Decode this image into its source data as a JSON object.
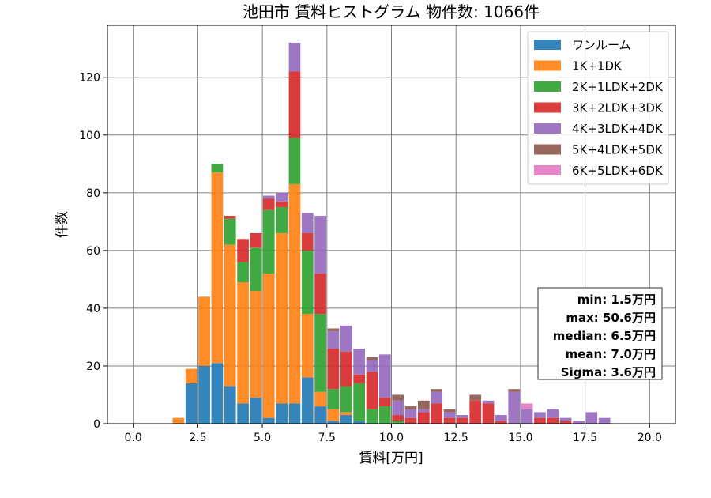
{
  "chart_data": {
    "type": "bar",
    "stacked": true,
    "title": "池田市 賃料ヒストグラム 物件数: 1066件",
    "xlabel": "賃料[万円]",
    "ylabel": "件数",
    "xlim": [
      -1.0,
      21.0
    ],
    "ylim": [
      0,
      138
    ],
    "bin_width": 0.5,
    "xticks": [
      0.0,
      2.5,
      5.0,
      7.5,
      10.0,
      12.5,
      15.0,
      17.5,
      20.0
    ],
    "xtick_labels": [
      "0.0",
      "2.5",
      "5.0",
      "7.5",
      "10.0",
      "12.5",
      "15.0",
      "17.5",
      "20.0"
    ],
    "yticks": [
      0,
      20,
      40,
      60,
      80,
      100,
      120
    ],
    "ytick_labels": [
      "0",
      "20",
      "40",
      "60",
      "80",
      "100",
      "120"
    ],
    "grid": true,
    "legend_position": "top-right",
    "bin_starts": [
      1.5,
      2.0,
      2.5,
      3.0,
      3.5,
      4.0,
      4.5,
      5.0,
      5.5,
      6.0,
      6.5,
      7.0,
      7.5,
      8.0,
      8.5,
      9.0,
      9.5,
      10.0,
      10.5,
      11.0,
      11.5,
      12.0,
      12.5,
      13.0,
      13.5,
      14.0,
      14.5,
      15.0,
      15.5,
      16.0,
      16.5,
      17.0,
      17.5,
      18.0,
      18.5
    ],
    "series": [
      {
        "name": "ワンルーム",
        "color": "#1f77b4",
        "values": [
          0,
          14,
          20,
          21,
          13,
          7,
          9,
          2,
          7,
          7,
          16,
          6,
          1,
          3,
          1,
          0,
          0,
          0,
          0,
          0,
          0,
          0,
          0,
          0,
          0,
          0,
          0,
          0,
          0,
          0,
          0,
          0,
          0,
          0,
          0
        ]
      },
      {
        "name": "1K+1DK",
        "color": "#ff7f0e",
        "values": [
          2,
          5,
          24,
          66,
          49,
          42,
          37,
          50,
          59,
          76,
          22,
          5,
          4,
          1,
          0,
          0,
          0,
          0,
          0,
          0,
          0,
          0,
          0,
          0,
          0,
          0,
          0,
          0,
          0,
          0,
          0,
          0,
          0,
          0,
          0
        ]
      },
      {
        "name": "2K+1LDK+2DK",
        "color": "#2ca02c",
        "values": [
          0,
          0,
          0,
          3,
          9,
          7,
          15,
          22,
          9,
          16,
          22,
          27,
          7,
          9,
          13,
          5,
          6,
          1,
          0,
          0,
          0,
          0,
          0,
          0,
          0,
          0,
          0,
          0,
          0,
          0,
          0,
          0,
          0,
          0,
          0
        ]
      },
      {
        "name": "3K+2LDK+3DK",
        "color": "#d62728",
        "values": [
          0,
          0,
          0,
          0,
          1,
          8,
          5,
          4,
          2,
          23,
          6,
          14,
          14,
          12,
          3,
          13,
          3,
          2,
          2,
          4,
          7,
          2,
          2,
          8,
          7,
          1,
          0,
          0,
          2,
          2,
          1,
          0,
          0,
          0,
          0
        ]
      },
      {
        "name": "4K+3LDK+4DK",
        "color": "#9467bd",
        "values": [
          0,
          0,
          0,
          0,
          0,
          0,
          0,
          1,
          3,
          10,
          7,
          20,
          6,
          9,
          9,
          4,
          15,
          5,
          3,
          1,
          4,
          2,
          1,
          0,
          1,
          2,
          11,
          5,
          2,
          3,
          1,
          1,
          4,
          2,
          0
        ]
      },
      {
        "name": "5K+4LDK+5DK",
        "color": "#8c564b",
        "values": [
          0,
          0,
          0,
          0,
          0,
          0,
          0,
          0,
          0,
          0,
          0,
          0,
          1,
          0,
          0,
          1,
          0,
          2,
          1,
          3,
          1,
          1,
          0,
          2,
          0,
          0,
          1,
          0,
          0,
          0,
          0,
          0,
          0,
          0,
          0
        ]
      },
      {
        "name": "6K+5LDK+6DK",
        "color": "#e377c2",
        "values": [
          0,
          0,
          0,
          0,
          0,
          0,
          0,
          0,
          0,
          0,
          0,
          0,
          0,
          0,
          0,
          0,
          0,
          0,
          0,
          0,
          0,
          0,
          0,
          0,
          0,
          0,
          0,
          2,
          0,
          0,
          0,
          0,
          0,
          0,
          0
        ]
      }
    ],
    "stats_box": {
      "position": "right",
      "lines": [
        "min: 1.5万円",
        "max: 50.6万円",
        "median: 6.5万円",
        "mean: 7.0万円",
        "Sigma: 3.6万円"
      ]
    }
  }
}
